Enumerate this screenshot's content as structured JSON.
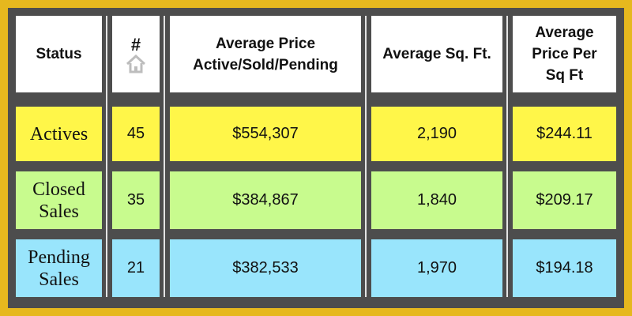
{
  "colors": {
    "background": "#e6b81e",
    "grid": "#4d4d4d",
    "header": "#ffffff",
    "actives": "#fff649",
    "closed": "#c8fb8e",
    "pending": "#99e5fc"
  },
  "header": {
    "status": "Status",
    "count": "#",
    "count_icon": "house-icon",
    "avg_price_line1": "Average Price",
    "avg_price_line2": "Active/Sold/Pending",
    "avg_sqft": "Average Sq. Ft.",
    "ppsf_line1": "Average",
    "ppsf_line2": "Price Per",
    "ppsf_line3": "Sq Ft"
  },
  "rows": [
    {
      "label_line1": "Actives",
      "label_line2": "",
      "count": "45",
      "avg_price": "$554,307",
      "avg_sqft": "2,190",
      "ppsf": "$244.11"
    },
    {
      "label_line1": "Closed",
      "label_line2": "Sales",
      "count": "35",
      "avg_price": "$384,867",
      "avg_sqft": "1,840",
      "ppsf": "$209.17"
    },
    {
      "label_line1": "Pending",
      "label_line2": "Sales",
      "count": "21",
      "avg_price": "$382,533",
      "avg_sqft": "1,970",
      "ppsf": "$194.18"
    }
  ]
}
